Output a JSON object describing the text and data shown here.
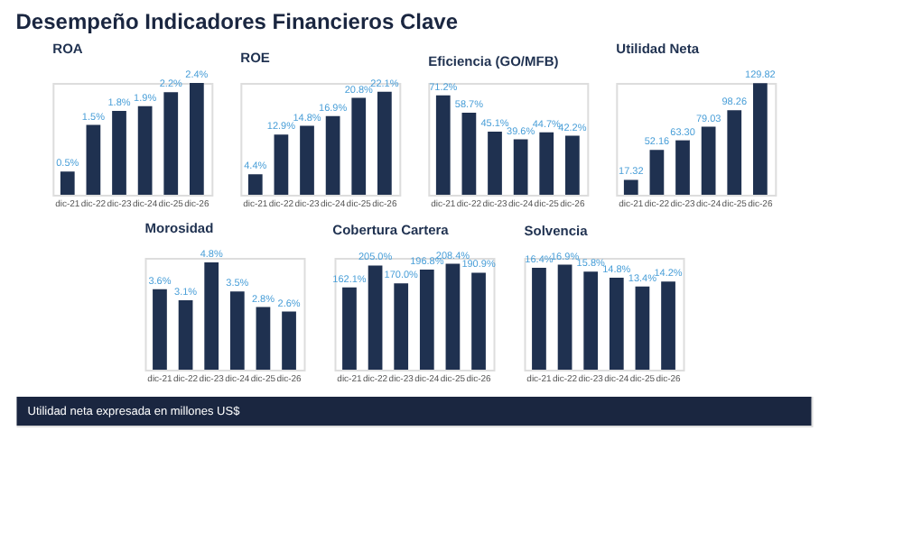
{
  "chart_data": [
    {
      "type": "other",
      "title": "Desempeño Indicadores Financieros Clave",
      "annotations": [
        "Utilidad neta expresada en millones US$"
      ]
    },
    {
      "type": "bar",
      "title": "ROA",
      "categories": [
        "dic-21",
        "dic-22",
        "dic-23",
        "dic-24",
        "dic-25",
        "dic-26"
      ],
      "values": [
        0.5,
        1.5,
        1.8,
        1.9,
        2.2,
        2.4
      ],
      "value_labels": [
        "0.5%",
        "1.5%",
        "1.8%",
        "1.9%",
        "2.2%",
        "2.4%"
      ],
      "color": "#1f3150",
      "tick_labels": "x",
      "grid": false
    },
    {
      "type": "bar",
      "title": "ROE",
      "categories": [
        "dic-21",
        "dic-22",
        "dic-23",
        "dic-24",
        "dic-25",
        "dic-26"
      ],
      "values": [
        4.4,
        12.9,
        14.8,
        16.9,
        20.8,
        22.1
      ],
      "value_labels": [
        "4.4%",
        "12.9%",
        "14.8%",
        "16.9%",
        "20.8%",
        "22.1%"
      ],
      "color": "#1f3150",
      "tick_labels": "x",
      "grid": false
    },
    {
      "type": "bar",
      "title": "Eficiencia (GO/MFB)",
      "categories": [
        "dic-21",
        "dic-22",
        "dic-23",
        "dic-24",
        "dic-25",
        "dic-26"
      ],
      "values": [
        71.2,
        58.7,
        45.1,
        39.6,
        44.7,
        42.2
      ],
      "value_labels": [
        "71.2%",
        "58.7%",
        "45.1%",
        "39.6%",
        "44.7%",
        "42.2%"
      ],
      "color": "#1f3150",
      "tick_labels": "x",
      "grid": false
    },
    {
      "type": "bar",
      "title": "Utilidad Neta",
      "categories": [
        "dic-21",
        "dic-22",
        "dic-23",
        "dic-24",
        "dic-25",
        "dic-26"
      ],
      "values": [
        17.32,
        52.16,
        63.3,
        79.03,
        98.26,
        129.82
      ],
      "value_labels": [
        "17.32",
        "52.16",
        "63.30",
        "79.03",
        "98.26",
        "129.82"
      ],
      "color": "#1f3150",
      "tick_labels": "x",
      "grid": false
    },
    {
      "type": "bar",
      "title": "Morosidad",
      "categories": [
        "dic-21",
        "dic-22",
        "dic-23",
        "dic-24",
        "dic-25",
        "dic-26"
      ],
      "values": [
        3.6,
        3.1,
        4.8,
        3.5,
        2.8,
        2.6
      ],
      "value_labels": [
        "3.6%",
        "3.1%",
        "4.8%",
        "3.5%",
        "2.8%",
        "2.6%"
      ],
      "color": "#1f3150",
      "tick_labels": "x",
      "grid": false
    },
    {
      "type": "bar",
      "title": "Cobertura Cartera",
      "categories": [
        "dic-21",
        "dic-22",
        "dic-23",
        "dic-24",
        "dic-25",
        "dic-26"
      ],
      "values": [
        162.1,
        205.0,
        170.0,
        196.8,
        208.4,
        190.9
      ],
      "value_labels": [
        "162.1%",
        "205.0%",
        "170.0%",
        "196.8%",
        "208.4%",
        "190.9%"
      ],
      "color": "#1f3150",
      "tick_labels": "x",
      "grid": false
    },
    {
      "type": "bar",
      "title": "Solvencia",
      "categories": [
        "dic-21",
        "dic-22",
        "dic-23",
        "dic-24",
        "dic-25",
        "dic-26"
      ],
      "values": [
        16.4,
        16.9,
        15.8,
        14.8,
        13.4,
        14.2
      ],
      "value_labels": [
        "16.4%",
        "16.9%",
        "15.8%",
        "14.8%",
        "13.4%",
        "14.2%"
      ],
      "color": "#1f3150",
      "tick_labels": "x",
      "grid": false
    }
  ]
}
